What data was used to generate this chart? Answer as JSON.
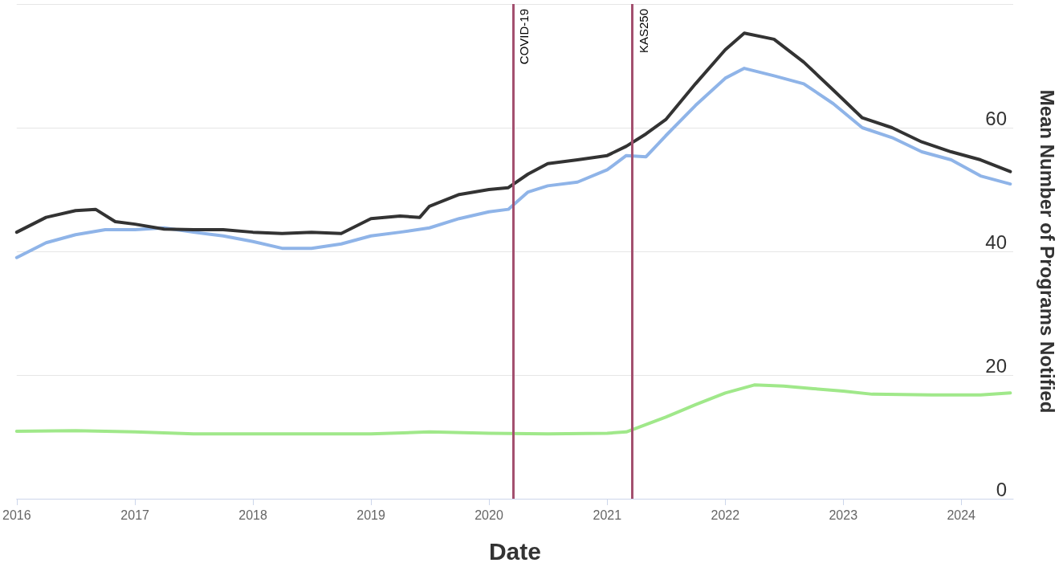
{
  "chart_data": {
    "type": "line",
    "xlabel": "Date",
    "ylabel": "Mean Number of Programs Notified",
    "xlim": [
      "2016-01-01",
      "2024-06-10"
    ],
    "xticks": [
      "2016",
      "2017",
      "2018",
      "2019",
      "2020",
      "2021",
      "2022",
      "2023",
      "2024"
    ],
    "ylim": [
      0,
      80
    ],
    "yticks": [
      0,
      20,
      40,
      60
    ],
    "grid": "y",
    "marker": "none",
    "line_style": "solid",
    "ref_lines": [
      {
        "axis": "x",
        "value": "2020-03-15",
        "label": "COVID-19",
        "color": "#a3506f"
      },
      {
        "axis": "x",
        "value": "2021-03-20",
        "label": "KAS250",
        "color": "#a3506f"
      }
    ],
    "series": [
      {
        "color": "#333333",
        "x": [
          "2016-01",
          "2016-04",
          "2016-07",
          "2016-09",
          "2016-11",
          "2017-01",
          "2017-04",
          "2017-07",
          "2017-10",
          "2018-01",
          "2018-04",
          "2018-07",
          "2018-10",
          "2019-01",
          "2019-04",
          "2019-06",
          "2019-07",
          "2019-10",
          "2020-01",
          "2020-03",
          "2020-05",
          "2020-07",
          "2020-10",
          "2021-01",
          "2021-03",
          "2021-05",
          "2021-07",
          "2021-10",
          "2022-01",
          "2022-03",
          "2022-06",
          "2022-09",
          "2022-12",
          "2023-03",
          "2023-06",
          "2023-09",
          "2023-12",
          "2024-03",
          "2024-06"
        ],
        "values": [
          43.1,
          45.5,
          46.6,
          46.8,
          44.8,
          44.4,
          43.6,
          43.5,
          43.5,
          43.1,
          42.9,
          43.1,
          42.9,
          45.3,
          45.7,
          45.5,
          47.3,
          49.2,
          50,
          50.3,
          52.5,
          54.2,
          54.8,
          55.5,
          57,
          59,
          61.3,
          67.1,
          72.6,
          75.3,
          74.3,
          70.6,
          66.1,
          61.6,
          60,
          57.7,
          56.1,
          54.8,
          52.9
        ]
      },
      {
        "color": "#8fb4e8",
        "x": [
          "2016-01",
          "2016-04",
          "2016-07",
          "2016-10",
          "2017-01",
          "2017-04",
          "2017-07",
          "2017-10",
          "2018-01",
          "2018-04",
          "2018-07",
          "2018-10",
          "2019-01",
          "2019-04",
          "2019-07",
          "2019-10",
          "2020-01",
          "2020-03",
          "2020-05",
          "2020-07",
          "2020-10",
          "2021-01",
          "2021-03",
          "2021-05",
          "2021-07",
          "2021-10",
          "2022-01",
          "2022-03",
          "2022-06",
          "2022-09",
          "2022-12",
          "2023-03",
          "2023-06",
          "2023-09",
          "2023-12",
          "2024-03",
          "2024-06"
        ],
        "values": [
          39,
          41.4,
          42.7,
          43.5,
          43.5,
          43.8,
          43.1,
          42.5,
          41.6,
          40.5,
          40.5,
          41.2,
          42.5,
          43.1,
          43.8,
          45.3,
          46.4,
          46.8,
          49.6,
          50.6,
          51.2,
          53.2,
          55.5,
          55.3,
          58.7,
          63.6,
          68,
          69.6,
          68.4,
          67.1,
          63.9,
          60,
          58.4,
          56.1,
          54.8,
          52.2,
          50.9
        ]
      },
      {
        "color": "#a0e88a",
        "x": [
          "2016-01",
          "2016-07",
          "2017-01",
          "2017-07",
          "2018-01",
          "2019-01",
          "2019-07",
          "2020-01",
          "2020-07",
          "2021-01",
          "2021-03",
          "2021-07",
          "2021-10",
          "2022-01",
          "2022-04",
          "2022-07",
          "2022-10",
          "2023-01",
          "2023-04",
          "2023-10",
          "2024-03",
          "2024-06"
        ],
        "values": [
          10.9,
          11,
          10.8,
          10.5,
          10.5,
          10.5,
          10.8,
          10.6,
          10.5,
          10.6,
          10.8,
          13.2,
          15.2,
          17.1,
          18.4,
          18.2,
          17.8,
          17.4,
          16.9,
          16.8,
          16.8,
          17.1
        ]
      }
    ]
  }
}
